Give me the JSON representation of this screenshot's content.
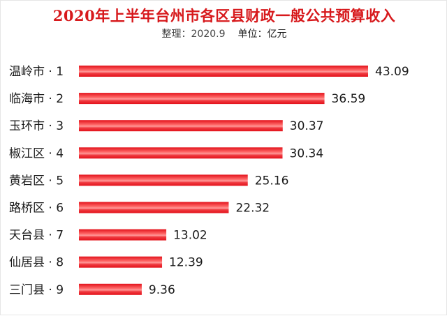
{
  "header": {
    "title": "2020年上半年台州市各区县财政一般公共预算收入",
    "organizer": "整理：2020.9",
    "unit": "单位：亿元"
  },
  "colors": {
    "title": "#d7191c",
    "bar": "#e3121b",
    "bar_highlight": "#ffffff"
  },
  "chart_data": {
    "type": "bar",
    "orientation": "horizontal",
    "title": "2020年上半年台州市各区县财政一般公共预算收入",
    "subtitle": "整理：2020.9 单位：亿元",
    "categories": [
      "温岭市 · 1",
      "临海市 · 2",
      "玉环市 · 3",
      "椒江区 · 4",
      "黄岩区 · 5",
      "路桥区 · 6",
      "天台县 · 7",
      "仙居县 · 8",
      "三门县 · 9"
    ],
    "values": [
      43.09,
      36.59,
      30.37,
      30.34,
      25.16,
      22.32,
      13.02,
      12.39,
      9.36
    ],
    "value_labels": [
      "43.09",
      "36.59",
      "30.37",
      "30.34",
      "25.16",
      "22.32",
      "13.02",
      "12.39",
      "9.36"
    ],
    "xlim": [
      0,
      43.09
    ],
    "xlabel": "",
    "ylabel": "",
    "grid": false,
    "legend": "none"
  }
}
